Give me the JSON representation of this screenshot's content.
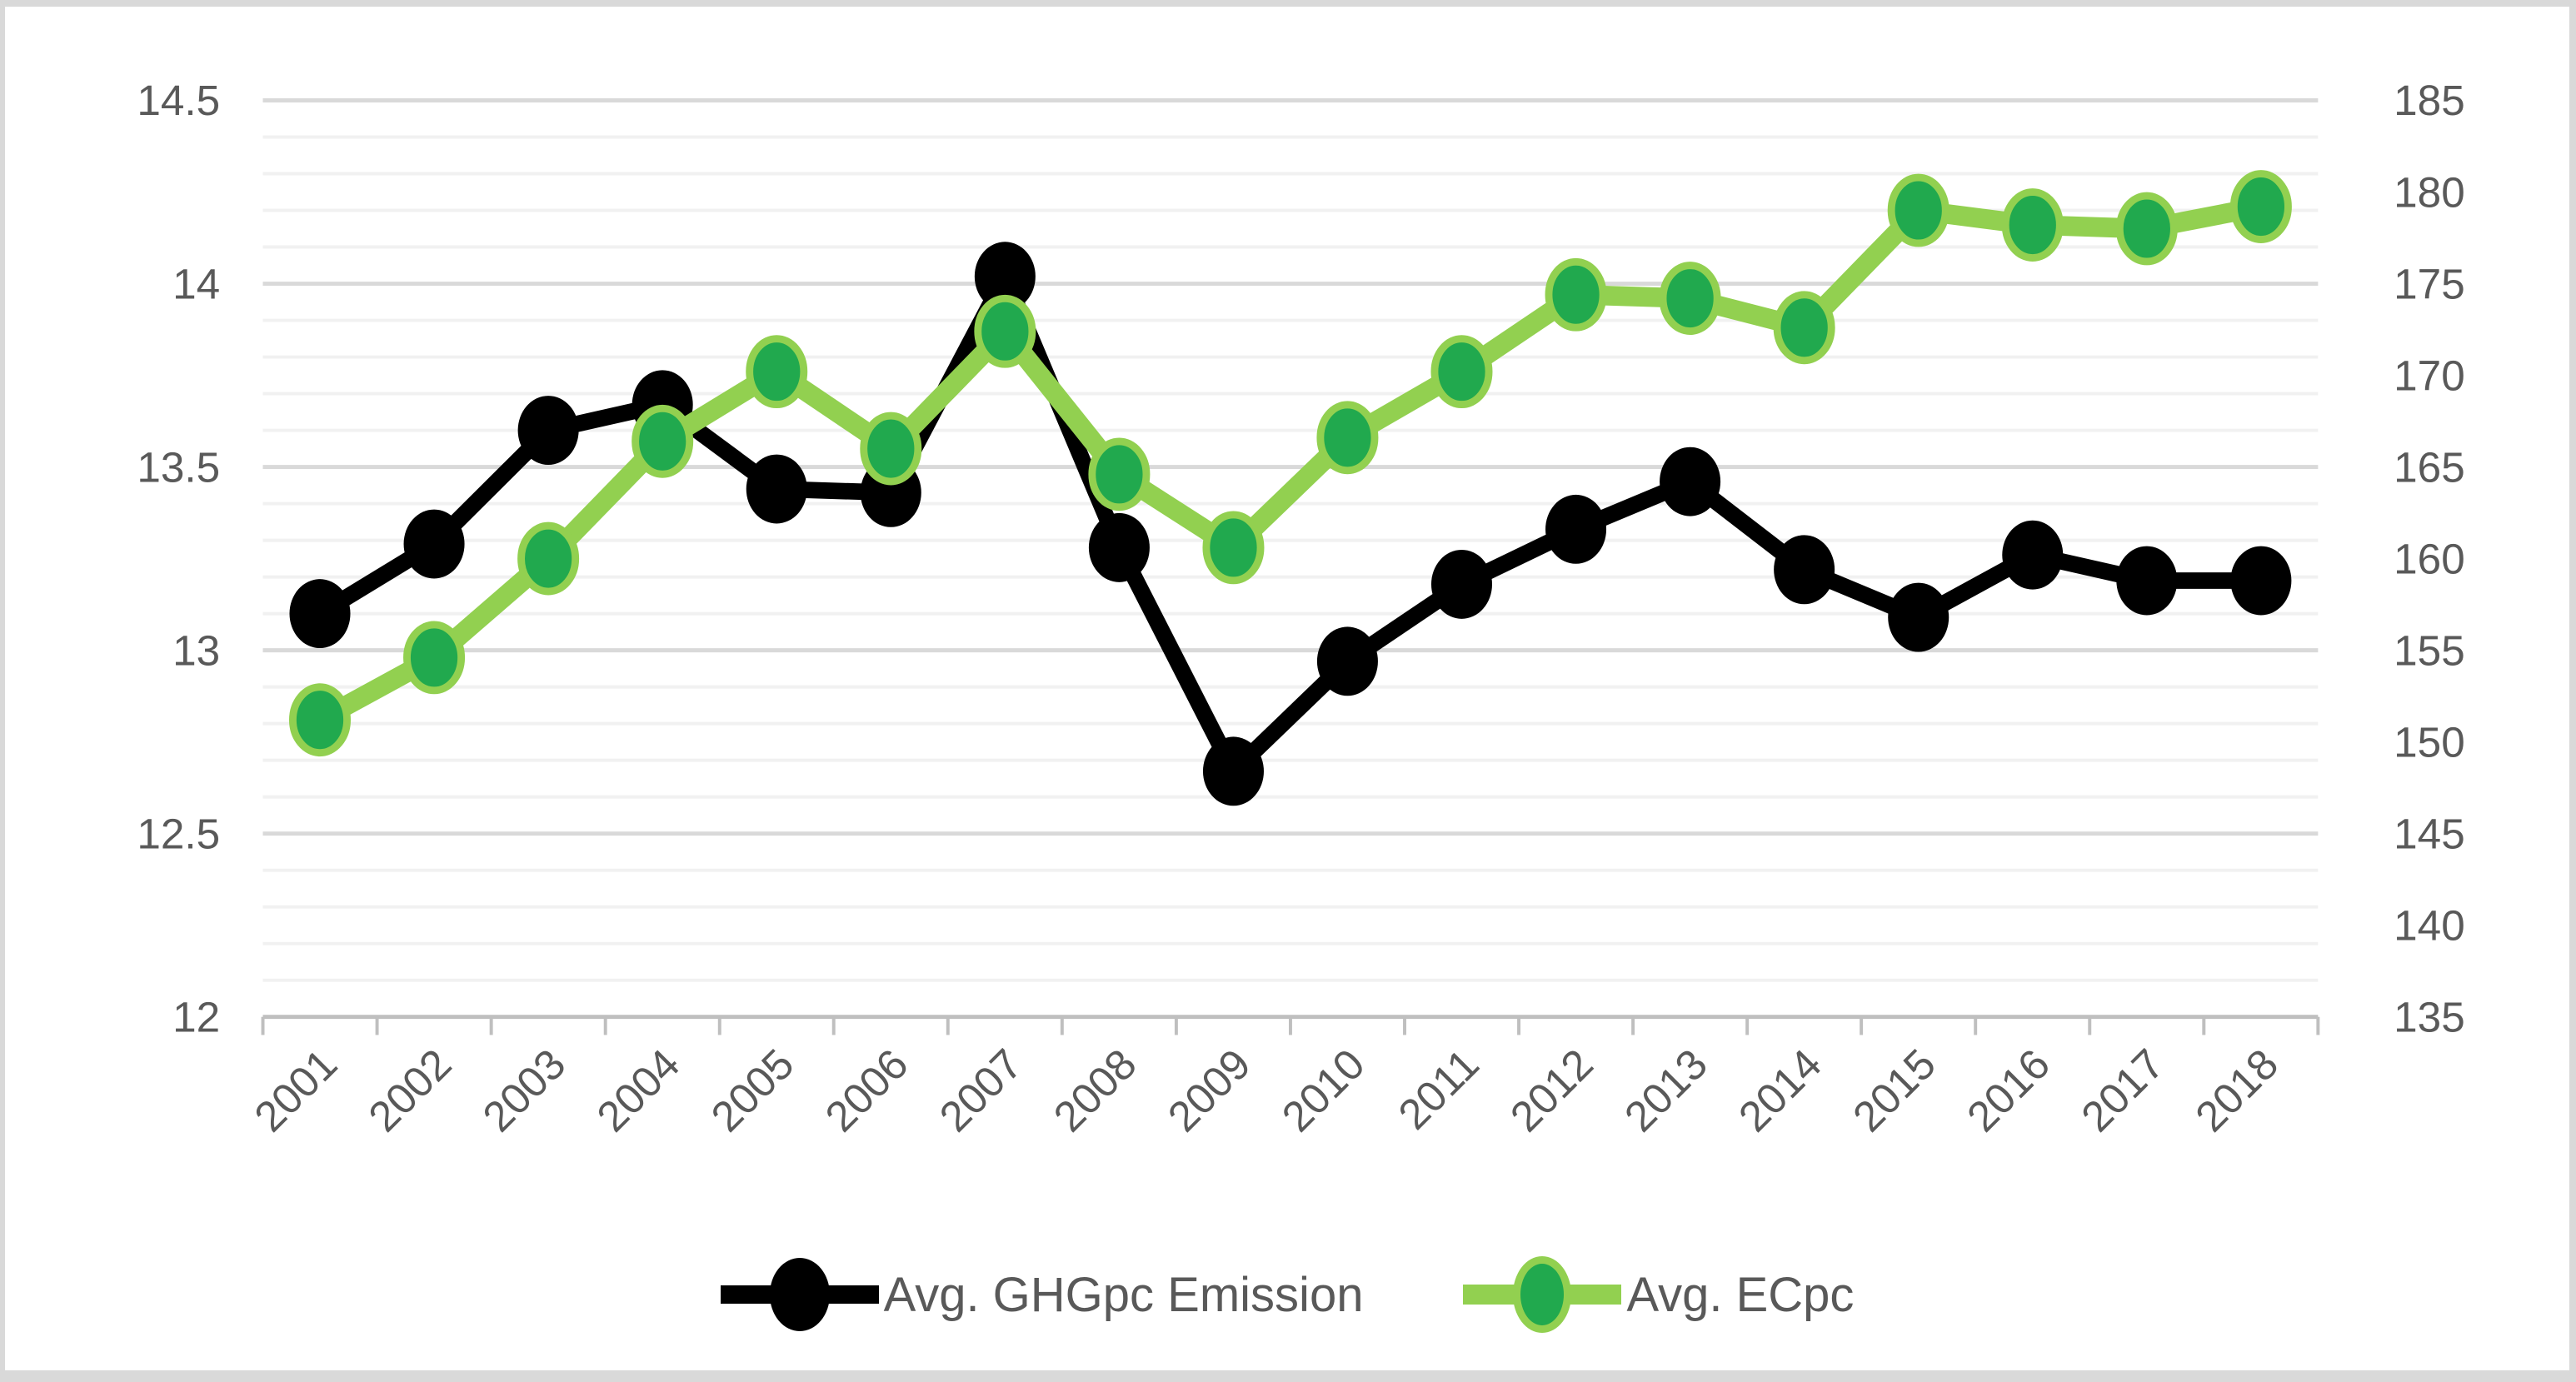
{
  "chart_data": {
    "type": "line",
    "title": "",
    "categories": [
      "2001",
      "2002",
      "2003",
      "2004",
      "2005",
      "2006",
      "2007",
      "2008",
      "2009",
      "2010",
      "2011",
      "2012",
      "2013",
      "2014",
      "2015",
      "2016",
      "2017",
      "2018"
    ],
    "series": [
      {
        "name": "Avg. GHGpc Emission",
        "axis": "left",
        "line_color": "#000000",
        "marker_fill": "#000000",
        "marker_stroke": "#000000",
        "values": [
          13.1,
          13.29,
          13.6,
          13.67,
          13.44,
          13.43,
          14.02,
          13.28,
          12.67,
          12.97,
          13.18,
          13.33,
          13.46,
          13.22,
          13.09,
          13.26,
          13.19,
          13.19
        ]
      },
      {
        "name": "Avg. ECpc",
        "axis": "right",
        "line_color": "#92d050",
        "marker_fill": "#21a94e",
        "marker_stroke": "#92d050",
        "values": [
          151.2,
          154.6,
          160.0,
          166.4,
          170.2,
          166.0,
          172.4,
          164.6,
          160.6,
          166.6,
          170.2,
          174.4,
          174.2,
          172.6,
          179.0,
          178.2,
          178.0,
          179.2
        ]
      }
    ],
    "left_axis": {
      "min": 12,
      "max": 14.5,
      "major_step": 0.5,
      "minor_step": 0.1,
      "tick_labels": [
        "12",
        "12.5",
        "13",
        "13.5",
        "14",
        "14.5"
      ]
    },
    "right_axis": {
      "min": 135,
      "max": 185,
      "step": 5,
      "tick_labels": [
        "135",
        "140",
        "145",
        "150",
        "155",
        "160",
        "165",
        "170",
        "175",
        "180",
        "185"
      ]
    },
    "grid": {
      "major_color": "#d9d9d9",
      "minor_color": "#f1f1f1",
      "axis_color": "#bfbfbf",
      "show_vertical": false
    },
    "label_color": "#595959",
    "legend_position": "bottom",
    "x_label_rotation_deg": 45
  },
  "legend": {
    "items": [
      {
        "label": "Avg. GHGpc Emission"
      },
      {
        "label": "Avg. ECpc"
      }
    ]
  }
}
